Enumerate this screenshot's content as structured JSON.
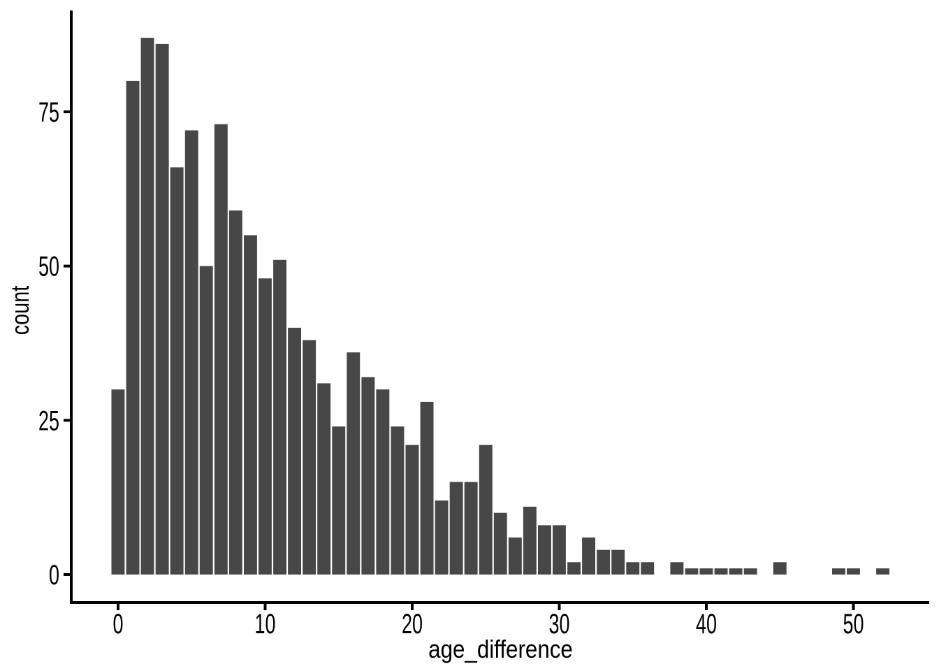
{
  "chart_data": {
    "type": "bar",
    "subtype": "histogram",
    "title": "",
    "xlabel": "age_difference",
    "ylabel": "count",
    "x": [
      0,
      1,
      2,
      3,
      4,
      5,
      6,
      7,
      8,
      9,
      10,
      11,
      12,
      13,
      14,
      15,
      16,
      17,
      18,
      19,
      20,
      21,
      22,
      23,
      24,
      25,
      26,
      27,
      28,
      29,
      30,
      31,
      32,
      33,
      34,
      35,
      36,
      37,
      38,
      39,
      40,
      41,
      42,
      43,
      44,
      45,
      46,
      47,
      48,
      49,
      50,
      51,
      52
    ],
    "counts": [
      30,
      80,
      87,
      86,
      66,
      72,
      50,
      73,
      59,
      55,
      48,
      51,
      40,
      38,
      31,
      24,
      36,
      32,
      30,
      24,
      21,
      28,
      12,
      15,
      15,
      21,
      10,
      6,
      11,
      8,
      8,
      2,
      6,
      4,
      4,
      2,
      2,
      0,
      2,
      1,
      1,
      1,
      1,
      1,
      0,
      2,
      0,
      0,
      0,
      1,
      1,
      0,
      1
    ],
    "x_ticks": [
      0,
      10,
      20,
      30,
      40,
      50
    ],
    "y_ticks": [
      0,
      25,
      50,
      75
    ],
    "xlim": [
      -3.1,
      55.1
    ],
    "ylim": [
      -4.35,
      91.35
    ],
    "bar_width": 0.9,
    "bar_color": "#474747",
    "axis_color": "#000000",
    "text_color": "#000000",
    "background_color": "#ffffff",
    "grid": "off",
    "legend": "none"
  }
}
